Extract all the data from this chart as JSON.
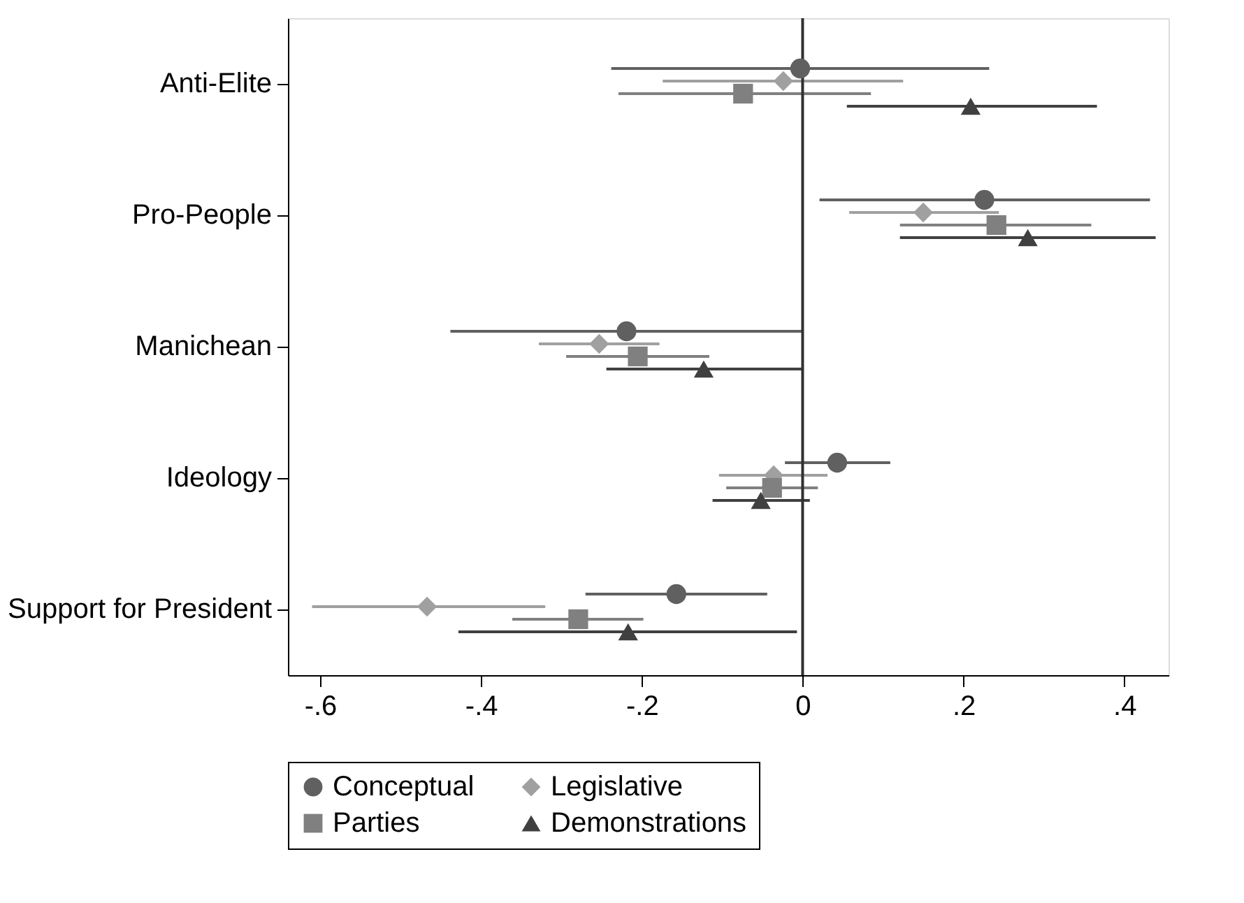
{
  "chart_data": {
    "type": "scatter",
    "orientation": "horizontal",
    "categories": [
      "Anti-Elite",
      "Pro-People",
      "Manichean",
      "Ideology",
      "Support for President"
    ],
    "series": [
      {
        "name": "Conceptual",
        "color": "#606060",
        "marker": "circle",
        "values": [
          -0.003,
          0.226,
          -0.219,
          0.043,
          -0.157
        ],
        "errors": [
          [
            -0.238,
            0.232
          ],
          [
            0.021,
            0.432
          ],
          [
            -0.438,
            -0.001
          ],
          [
            -0.022,
            0.109
          ],
          [
            -0.27,
            -0.044
          ]
        ]
      },
      {
        "name": "Legislative",
        "color": "#a0a0a0",
        "marker": "diamond",
        "values": [
          -0.024,
          0.15,
          -0.253,
          -0.036,
          -0.467
        ],
        "errors": [
          [
            -0.174,
            0.125
          ],
          [
            0.058,
            0.244
          ],
          [
            -0.328,
            -0.178
          ],
          [
            -0.104,
            0.031
          ],
          [
            -0.61,
            -0.32
          ]
        ]
      },
      {
        "name": "Parties",
        "color": "#808080",
        "marker": "square",
        "values": [
          -0.074,
          0.241,
          -0.205,
          -0.038,
          -0.279
        ],
        "errors": [
          [
            -0.229,
            0.085
          ],
          [
            0.121,
            0.359
          ],
          [
            -0.294,
            -0.116
          ],
          [
            -0.095,
            0.019
          ],
          [
            -0.361,
            -0.198
          ]
        ]
      },
      {
        "name": "Demonstrations",
        "color": "#404040",
        "marker": "triangle",
        "values": [
          0.209,
          0.28,
          -0.123,
          -0.052,
          -0.217
        ],
        "errors": [
          [
            0.055,
            0.366
          ],
          [
            0.121,
            0.439
          ],
          [
            -0.244,
            -0.001
          ],
          [
            -0.112,
            0.009
          ],
          [
            -0.428,
            -0.007
          ]
        ]
      }
    ],
    "xlim": [
      -0.64,
      0.455
    ],
    "xticks": [
      {
        "value": -0.6,
        "label": "-.6"
      },
      {
        "value": -0.4,
        "label": "-.4"
      },
      {
        "value": -0.2,
        "label": "-.2"
      },
      0,
      {
        "value": 0.2,
        "label": ".2"
      },
      {
        "value": 0.4,
        "label": ".4"
      }
    ],
    "ref_lines": [
      {
        "axis": "x",
        "value": 0,
        "color": "#303030"
      }
    ],
    "grid": false,
    "legend": "bottom"
  }
}
